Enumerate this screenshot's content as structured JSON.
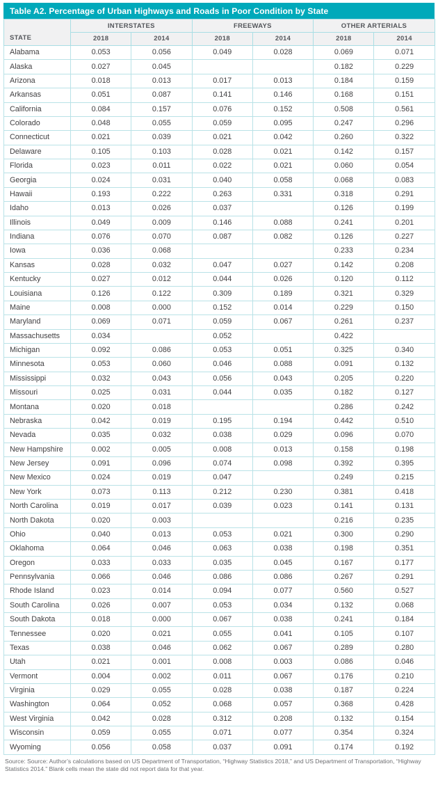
{
  "table": {
    "title": "Table A2. Percentage of Urban Highways and Roads in Poor Condition by State",
    "state_header": "STATE",
    "groups": [
      {
        "label": "INTERSTATES"
      },
      {
        "label": "FREEWAYS"
      },
      {
        "label": "OTHER ARTERIALS"
      }
    ],
    "year_headers": [
      "2018",
      "2014",
      "2018",
      "2014",
      "2018",
      "2014"
    ],
    "rows": [
      {
        "state": "Alabama",
        "values": [
          "0.053",
          "0.056",
          "0.049",
          "0.028",
          "0.069",
          "0.071"
        ]
      },
      {
        "state": "Alaska",
        "values": [
          "0.027",
          "0.045",
          "",
          "",
          "0.182",
          "0.229"
        ]
      },
      {
        "state": "Arizona",
        "values": [
          "0.018",
          "0.013",
          "0.017",
          "0.013",
          "0.184",
          "0.159"
        ]
      },
      {
        "state": "Arkansas",
        "values": [
          "0.051",
          "0.087",
          "0.141",
          "0.146",
          "0.168",
          "0.151"
        ]
      },
      {
        "state": "California",
        "values": [
          "0.084",
          "0.157",
          "0.076",
          "0.152",
          "0.508",
          "0.561"
        ]
      },
      {
        "state": "Colorado",
        "values": [
          "0.048",
          "0.055",
          "0.059",
          "0.095",
          "0.247",
          "0.296"
        ]
      },
      {
        "state": "Connecticut",
        "values": [
          "0.021",
          "0.039",
          "0.021",
          "0.042",
          "0.260",
          "0.322"
        ]
      },
      {
        "state": "Delaware",
        "values": [
          "0.105",
          "0.103",
          "0.028",
          "0.021",
          "0.142",
          "0.157"
        ]
      },
      {
        "state": "Florida",
        "values": [
          "0.023",
          "0.011",
          "0.022",
          "0.021",
          "0.060",
          "0.054"
        ]
      },
      {
        "state": "Georgia",
        "values": [
          "0.024",
          "0.031",
          "0.040",
          "0.058",
          "0.068",
          "0.083"
        ]
      },
      {
        "state": "Hawaii",
        "values": [
          "0.193",
          "0.222",
          "0.263",
          "0.331",
          "0.318",
          "0.291"
        ]
      },
      {
        "state": "Idaho",
        "values": [
          "0.013",
          "0.026",
          "0.037",
          "",
          "0.126",
          "0.199"
        ]
      },
      {
        "state": "Illinois",
        "values": [
          "0.049",
          "0.009",
          "0.146",
          "0.088",
          "0.241",
          "0.201"
        ]
      },
      {
        "state": "Indiana",
        "values": [
          "0.076",
          "0.070",
          "0.087",
          "0.082",
          "0.126",
          "0.227"
        ]
      },
      {
        "state": "Iowa",
        "values": [
          "0.036",
          "0.068",
          "",
          "",
          "0.233",
          "0.234"
        ]
      },
      {
        "state": "Kansas",
        "values": [
          "0.028",
          "0.032",
          "0.047",
          "0.027",
          "0.142",
          "0.208"
        ]
      },
      {
        "state": "Kentucky",
        "values": [
          "0.027",
          "0.012",
          "0.044",
          "0.026",
          "0.120",
          "0.112"
        ]
      },
      {
        "state": "Louisiana",
        "values": [
          "0.126",
          "0.122",
          "0.309",
          "0.189",
          "0.321",
          "0.329"
        ]
      },
      {
        "state": "Maine",
        "values": [
          "0.008",
          "0.000",
          "0.152",
          "0.014",
          "0.229",
          "0.150"
        ]
      },
      {
        "state": "Maryland",
        "values": [
          "0.069",
          "0.071",
          "0.059",
          "0.067",
          "0.261",
          "0.237"
        ]
      },
      {
        "state": "Massachusetts",
        "values": [
          "0.034",
          "",
          "0.052",
          "",
          "0.422",
          ""
        ]
      },
      {
        "state": "Michigan",
        "values": [
          "0.092",
          "0.086",
          "0.053",
          "0.051",
          "0.325",
          "0.340"
        ]
      },
      {
        "state": "Minnesota",
        "values": [
          "0.053",
          "0.060",
          "0.046",
          "0.088",
          "0.091",
          "0.132"
        ]
      },
      {
        "state": "Mississippi",
        "values": [
          "0.032",
          "0.043",
          "0.056",
          "0.043",
          "0.205",
          "0.220"
        ]
      },
      {
        "state": "Missouri",
        "values": [
          "0.025",
          "0.031",
          "0.044",
          "0.035",
          "0.182",
          "0.127"
        ]
      },
      {
        "state": "Montana",
        "values": [
          "0.020",
          "0.018",
          "",
          "",
          "0.286",
          "0.242"
        ]
      },
      {
        "state": "Nebraska",
        "values": [
          "0.042",
          "0.019",
          "0.195",
          "0.194",
          "0.442",
          "0.510"
        ]
      },
      {
        "state": "Nevada",
        "values": [
          "0.035",
          "0.032",
          "0.038",
          "0.029",
          "0.096",
          "0.070"
        ]
      },
      {
        "state": "New Hampshire",
        "values": [
          "0.002",
          "0.005",
          "0.008",
          "0.013",
          "0.158",
          "0.198"
        ]
      },
      {
        "state": "New Jersey",
        "values": [
          "0.091",
          "0.096",
          "0.074",
          "0.098",
          "0.392",
          "0.395"
        ]
      },
      {
        "state": "New Mexico",
        "values": [
          "0.024",
          "0.019",
          "0.047",
          "",
          "0.249",
          "0.215"
        ]
      },
      {
        "state": "New York",
        "values": [
          "0.073",
          "0.113",
          "0.212",
          "0.230",
          "0.381",
          "0.418"
        ]
      },
      {
        "state": "North Carolina",
        "values": [
          "0.019",
          "0.017",
          "0.039",
          "0.023",
          "0.141",
          "0.131"
        ]
      },
      {
        "state": "North Dakota",
        "values": [
          "0.020",
          "0.003",
          "",
          "",
          "0.216",
          "0.235"
        ]
      },
      {
        "state": "Ohio",
        "values": [
          "0.040",
          "0.013",
          "0.053",
          "0.021",
          "0.300",
          "0.290"
        ]
      },
      {
        "state": "Oklahoma",
        "values": [
          "0.064",
          "0.046",
          "0.063",
          "0.038",
          "0.198",
          "0.351"
        ]
      },
      {
        "state": "Oregon",
        "values": [
          "0.033",
          "0.033",
          "0.035",
          "0.045",
          "0.167",
          "0.177"
        ]
      },
      {
        "state": "Pennsylvania",
        "values": [
          "0.066",
          "0.046",
          "0.086",
          "0.086",
          "0.267",
          "0.291"
        ]
      },
      {
        "state": "Rhode Island",
        "values": [
          "0.023",
          "0.014",
          "0.094",
          "0.077",
          "0.560",
          "0.527"
        ]
      },
      {
        "state": "South Carolina",
        "values": [
          "0.026",
          "0.007",
          "0.053",
          "0.034",
          "0.132",
          "0.068"
        ]
      },
      {
        "state": "South Dakota",
        "values": [
          "0.018",
          "0.000",
          "0.067",
          "0.038",
          "0.241",
          "0.184"
        ]
      },
      {
        "state": "Tennessee",
        "values": [
          "0.020",
          "0.021",
          "0.055",
          "0.041",
          "0.105",
          "0.107"
        ]
      },
      {
        "state": "Texas",
        "values": [
          "0.038",
          "0.046",
          "0.062",
          "0.067",
          "0.289",
          "0.280"
        ]
      },
      {
        "state": "Utah",
        "values": [
          "0.021",
          "0.001",
          "0.008",
          "0.003",
          "0.086",
          "0.046"
        ]
      },
      {
        "state": "Vermont",
        "values": [
          "0.004",
          "0.002",
          "0.011",
          "0.067",
          "0.176",
          "0.210"
        ]
      },
      {
        "state": "Virginia",
        "values": [
          "0.029",
          "0.055",
          "0.028",
          "0.038",
          "0.187",
          "0.224"
        ]
      },
      {
        "state": "Washington",
        "values": [
          "0.064",
          "0.052",
          "0.068",
          "0.057",
          "0.368",
          "0.428"
        ]
      },
      {
        "state": "West Virginia",
        "values": [
          "0.042",
          "0.028",
          "0.312",
          "0.208",
          "0.132",
          "0.154"
        ]
      },
      {
        "state": "Wisconsin",
        "values": [
          "0.059",
          "0.055",
          "0.071",
          "0.077",
          "0.354",
          "0.324"
        ]
      },
      {
        "state": "Wyoming",
        "values": [
          "0.056",
          "0.058",
          "0.037",
          "0.091",
          "0.174",
          "0.192"
        ]
      }
    ],
    "source": "Source: Source: Author’s calculations based on US Department of Transportation, “Highway Statistics 2018,” and US Department of Transportation, “Highway Statistics 2014.” Blank cells mean the state did not report data for that year."
  }
}
